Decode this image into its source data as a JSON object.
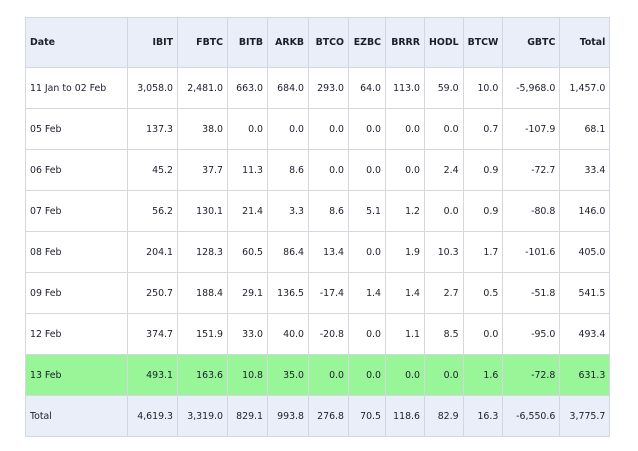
{
  "columns": [
    "Date",
    "IBIT",
    "FBTC",
    "BITB",
    "ARKB",
    "BTCO",
    "EZBC",
    "BRRR",
    "HODL",
    "BTCW",
    "GBTC",
    "Total"
  ],
  "rows": [
    [
      "11 Jan to 02 Feb",
      "3,058.0",
      "2,481.0",
      "663.0",
      "684.0",
      "293.0",
      "64.0",
      "113.0",
      "59.0",
      "10.0",
      "-5,968.0",
      "1,457.0"
    ],
    [
      "05 Feb",
      "137.3",
      "38.0",
      "0.0",
      "0.0",
      "0.0",
      "0.0",
      "0.0",
      "0.0",
      "0.7",
      "-107.9",
      "68.1"
    ],
    [
      "06 Feb",
      "45.2",
      "37.7",
      "11.3",
      "8.6",
      "0.0",
      "0.0",
      "0.0",
      "2.4",
      "0.9",
      "-72.7",
      "33.4"
    ],
    [
      "07 Feb",
      "56.2",
      "130.1",
      "21.4",
      "3.3",
      "8.6",
      "5.1",
      "1.2",
      "0.0",
      "0.9",
      "-80.8",
      "146.0"
    ],
    [
      "08 Feb",
      "204.1",
      "128.3",
      "60.5",
      "86.4",
      "13.4",
      "0.0",
      "1.9",
      "10.3",
      "1.7",
      "-101.6",
      "405.0"
    ],
    [
      "09 Feb",
      "250.7",
      "188.4",
      "29.1",
      "136.5",
      "-17.4",
      "1.4",
      "1.4",
      "2.7",
      "0.5",
      "-51.8",
      "541.5"
    ],
    [
      "12 Feb",
      "374.7",
      "151.9",
      "33.0",
      "40.0",
      "-20.8",
      "0.0",
      "1.1",
      "8.5",
      "0.0",
      "-95.0",
      "493.4"
    ],
    [
      "13 Feb",
      "493.1",
      "163.6",
      "10.8",
      "35.0",
      "0.0",
      "0.0",
      "0.0",
      "0.0",
      "1.6",
      "-72.8",
      "631.3"
    ]
  ],
  "totals": [
    "Total",
    "4,619.3",
    "3,319.0",
    "829.1",
    "993.8",
    "276.8",
    "70.5",
    "118.6",
    "82.9",
    "16.3",
    "-6,550.6",
    "3,775.7"
  ],
  "highlight_color": "#98f598"
}
